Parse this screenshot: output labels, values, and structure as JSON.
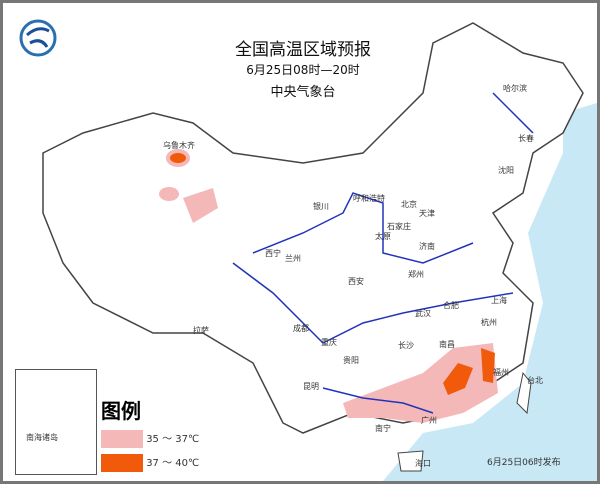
{
  "header": {
    "title": "全国高温区域预报",
    "period": "6月25日08时—20时",
    "issuer": "中央气象台"
  },
  "legend": {
    "title": "图例",
    "items": [
      {
        "label": "35 ～ 37℃",
        "color": "#f4b8b8"
      },
      {
        "label": "37 ～ 40℃",
        "color": "#f05a0a"
      }
    ]
  },
  "inset": {
    "label": "南海诸岛"
  },
  "footer": {
    "issued": "6月25日06时发布"
  },
  "colors": {
    "sea": "#c8e8f6",
    "river": "#2233bb",
    "land": "#ffffff"
  },
  "logo": "cma-logo",
  "cities": [
    {
      "name": "乌鲁木齐"
    },
    {
      "name": "哈尔滨"
    },
    {
      "name": "长春"
    },
    {
      "name": "沈阳"
    },
    {
      "name": "呼和浩特"
    },
    {
      "name": "北京"
    },
    {
      "name": "天津"
    },
    {
      "name": "石家庄"
    },
    {
      "name": "太原"
    },
    {
      "name": "济南"
    },
    {
      "name": "银川"
    },
    {
      "name": "西宁"
    },
    {
      "name": "兰州"
    },
    {
      "name": "郑州"
    },
    {
      "name": "西安"
    },
    {
      "name": "合肥"
    },
    {
      "name": "上海"
    },
    {
      "name": "杭州"
    },
    {
      "name": "武汉"
    },
    {
      "name": "成都"
    },
    {
      "name": "重庆"
    },
    {
      "name": "拉萨"
    },
    {
      "name": "长沙"
    },
    {
      "name": "南昌"
    },
    {
      "name": "福州"
    },
    {
      "name": "贵阳"
    },
    {
      "name": "昆明"
    },
    {
      "name": "南宁"
    },
    {
      "name": "广州"
    },
    {
      "name": "台北"
    },
    {
      "name": "海口"
    }
  ]
}
